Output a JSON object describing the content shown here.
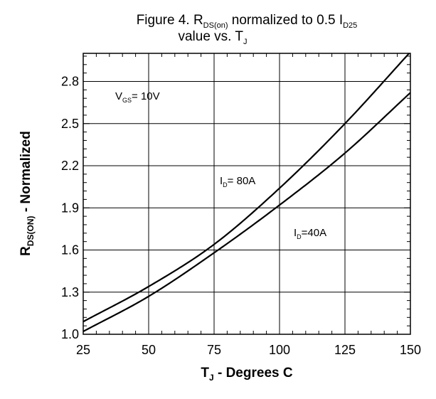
{
  "chart_data": {
    "type": "line",
    "title": {
      "line1_prefix": "Figure  4. R",
      "line1_sub1": "DS(on)",
      "line1_mid": " normalized to 0.5 I",
      "line1_sub2": "D25",
      "line2_prefix": "value vs. T",
      "line2_sub": "J"
    },
    "xlabel": {
      "main": "T",
      "sub": "J",
      "rest": " - Degrees C"
    },
    "ylabel": {
      "main": "R",
      "sub": "DS(ON)",
      "rest": " - Normalized"
    },
    "xlim": [
      25,
      150
    ],
    "ylim": [
      1.0,
      3.0
    ],
    "x_ticks": [
      25,
      50,
      75,
      100,
      125,
      150
    ],
    "x_tick_labels": [
      "25",
      "50",
      "75",
      "100",
      "125",
      "150"
    ],
    "y_ticks": [
      1.0,
      1.3,
      1.6,
      1.9,
      2.2,
      2.5,
      2.8
    ],
    "y_tick_labels": [
      "1.0",
      "1.3",
      "1.6",
      "1.9",
      "2.2",
      "2.5",
      "2.8"
    ],
    "grid": true,
    "annotations": {
      "vgs": {
        "main": "V",
        "sub": "GS",
        "rest": "= 10V"
      },
      "id80": {
        "main": "I",
        "sub": "D",
        "rest": "= 80A"
      },
      "id40": {
        "main": "I",
        "sub": "D",
        "rest": "=40A"
      }
    },
    "x": [
      25,
      50,
      75,
      100,
      125,
      150
    ],
    "series": [
      {
        "label": "I_D = 80A",
        "values": [
          1.09,
          1.34,
          1.64,
          2.04,
          2.5,
          3.01
        ]
      },
      {
        "label": "I_D = 40A",
        "values": [
          1.02,
          1.27,
          1.58,
          1.92,
          2.29,
          2.72
        ]
      }
    ]
  }
}
